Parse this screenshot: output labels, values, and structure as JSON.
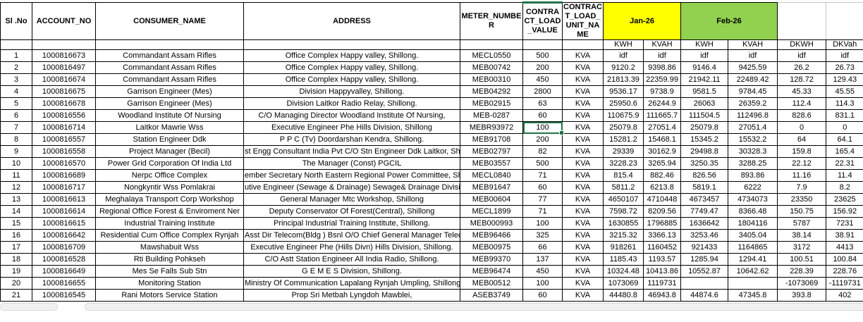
{
  "table": {
    "headers": {
      "sl_no": "Sl .No",
      "account_no": "ACCOUNT_NO",
      "consumer_name": "CONSUMER_NAME",
      "address": "ADDRESS",
      "meter_number": "METER_NUMBER",
      "contract_load_value": "CONTRACT_LOAD_VALUE",
      "contract_load_unit_name": "CONTRACT_LOAD_UNIT_NAME",
      "month1": "Jan-26",
      "month2": "Feb-26",
      "sub": [
        "KWH",
        "KVAH",
        "KWH",
        "KVAH",
        "DKWH",
        "DKVah"
      ]
    },
    "rows": [
      [
        "1",
        "1000816673",
        "Commandant Assam Rifles",
        "Office Complex Happy valley, Shillong.",
        "MECL0550",
        "500",
        "KVA",
        "idf",
        "idf",
        "idf",
        "idf",
        "idf",
        "idf"
      ],
      [
        "2",
        "1000816497",
        "Commandant Assam Rifles",
        "Office Complex Happy valley, Shillong.",
        "MEB00742",
        "200",
        "KVA",
        "9120.2",
        "9398.86",
        "9146.4",
        "9425.59",
        "26.2",
        "26.73"
      ],
      [
        "3",
        "1000816674",
        "Commandant Assam Rifles",
        "Office Complex Happy valley, Shillong.",
        "MEB00310",
        "450",
        "KVA",
        "21813.39",
        "22359.99",
        "21942.11",
        "22489.42",
        "128.72",
        "129.43"
      ],
      [
        "4",
        "1000816675",
        "Garrison Engineer (Mes)",
        "Division Happyvalley, Shillong.",
        "MEB04292",
        "2800",
        "KVA",
        "9536.17",
        "9738.9",
        "9581.5",
        "9784.45",
        "45.33",
        "45.55"
      ],
      [
        "5",
        "1000816678",
        "Garrison Engineer (Mes)",
        "Division Laitkor Radio Relay, Shillong.",
        "MEB02915",
        "63",
        "KVA",
        "25950.6",
        "26244.9",
        "26063",
        "26359.2",
        "112.4",
        "114.3"
      ],
      [
        "6",
        "1000816556",
        "Woodland Institute Of Nursing",
        "C/O Managing Director Woodland Institute Of Nursing,",
        "MEB-0287",
        "60",
        "KVA",
        "110675.9",
        "111665.7",
        "111504.5",
        "112496.8",
        "828.6",
        "831.1"
      ],
      [
        "7",
        "1000816714",
        "Laitkor Mawrie Wss",
        "Executive Engineer Phe Hills Division, Shillong",
        "MEBR93972",
        "100",
        "KVA",
        "25079.8",
        "27051.4",
        "25079.8",
        "27051.4",
        "0",
        "0"
      ],
      [
        "8",
        "1000816557",
        "Station Engineer Ddk",
        "P P C (Tv) Doordarshan Kendra, Shillong.",
        "MEB91708",
        "200",
        "KVA",
        "15281.2",
        "15468.1",
        "15345.2",
        "15532.2",
        "64",
        "64.1"
      ],
      [
        "9",
        "1000816558",
        "Project Manager (Becil)",
        "st Engg Consultant India Pvt C/O Stn Engineer Ddk Laitkor, Shillong. #",
        "MEB02797",
        "82",
        "KVA",
        "29339",
        "30162.9",
        "29498.8",
        "30328.3",
        "159.8",
        "165.4"
      ],
      [
        "10",
        "1000816570",
        "Power Grid Corporation Of India Ltd",
        "The Manager (Const) PGCIL",
        "MEB03557",
        "500",
        "KVA",
        "3228.23",
        "3265.94",
        "3250.35",
        "3288.25",
        "22.12",
        "22.31"
      ],
      [
        "11",
        "1000816689",
        "Nerpc Office Complex",
        "ember Secretary North Eastern Regional Power Committee, Shillon",
        "MECL0840",
        "71",
        "KVA",
        "815.4",
        "882.46",
        "826.56",
        "893.86",
        "11.16",
        "11.4"
      ],
      [
        "12",
        "1000816717",
        "Nongkyntir Wss Pomlakrai",
        "utive Engineer (Sewage & Drainage) Sewage& Drainage Division, Shi",
        "MEB91647",
        "60",
        "KVA",
        "5811.2",
        "6213.8",
        "5819.1",
        "6222",
        "7.9",
        "8.2"
      ],
      [
        "13",
        "1000816613",
        "Meghalaya Transport Corp Workshop",
        "General Manager Mtc Workshop, Shillong",
        "MEB00604",
        "77",
        "KVA",
        "4650107",
        "4710448",
        "4673457",
        "4734073",
        "23350",
        "23625"
      ],
      [
        "14",
        "1000816614",
        "Regional Office Forest & Enviroment Ner",
        "Deputy Conservator Of Forest(Central), Shillong",
        "MECL1899",
        "71",
        "KVA",
        "7598.72",
        "8209.56",
        "7749.47",
        "8366.48",
        "150.75",
        "156.92"
      ],
      [
        "15",
        "1000816615",
        "Industrial Training Institute",
        "Principal Industrial Training Institute, Shillong.",
        "MEB000993",
        "100",
        "KVA",
        "1630855",
        "1796885",
        "1636642",
        "1804116",
        "5787",
        "7231"
      ],
      [
        "16",
        "1000816642",
        "Residential Cum Office Complex Rynjah",
        "Asst Dir Telecom(Bldg ) Bsnl O/O Chief General Manager Telecom",
        "MEB96466",
        "325",
        "KVA",
        "3215.32",
        "3366.13",
        "3253.46",
        "3405.04",
        "38.14",
        "38.91"
      ],
      [
        "17",
        "1000816709",
        "Mawshabuit Wss",
        "Executive Engineer Phe (Hills Divn) Hills Division, Shillong.",
        "MEB00975",
        "66",
        "KVA",
        "918261",
        "1160452",
        "921433",
        "1164865",
        "3172",
        "4413"
      ],
      [
        "18",
        "1000816528",
        "Rti Building Pohkseh",
        "C/O Astt Station Engineer All India Radio, Shillong.",
        "MEB99370",
        "137",
        "KVA",
        "1185.43",
        "1193.57",
        "1285.94",
        "1294.41",
        "100.51",
        "100.84"
      ],
      [
        "19",
        "1000816649",
        "Mes Se Falls Sub Stn",
        "G E M E S Division, Shillong.",
        "MEB96474",
        "450",
        "KVA",
        "10324.48",
        "10413.86",
        "10552.87",
        "10642.62",
        "228.39",
        "228.76"
      ],
      [
        "20",
        "1000816655",
        "Monitoring Station",
        "Ministry Of Communication Lapalang Rynjah Umpling, Shillong.",
        "MEB00512",
        "100",
        "KVA",
        "1073069",
        "1119731",
        "",
        "",
        "-1073069",
        "-1119731"
      ],
      [
        "21",
        "1000816545",
        "Rani Motors Service Station",
        "Prop Sri Metbah Lyngdoh Mawblei,",
        "ASEB3749",
        "60",
        "KVA",
        "44480.8",
        "46943.8",
        "44874.6",
        "47345.8",
        "393.8",
        "402"
      ]
    ]
  },
  "selection": {
    "row_index": 6,
    "col_index": 5,
    "value": "100"
  },
  "colors": {
    "month1_bg": "#FFFF00",
    "month2_bg": "#92D050",
    "selection_border": "#217346",
    "gridline": "#C6C6C6",
    "scrollbar_bg": "#F1F1F1",
    "scrollbar_border": "#DADADA"
  }
}
